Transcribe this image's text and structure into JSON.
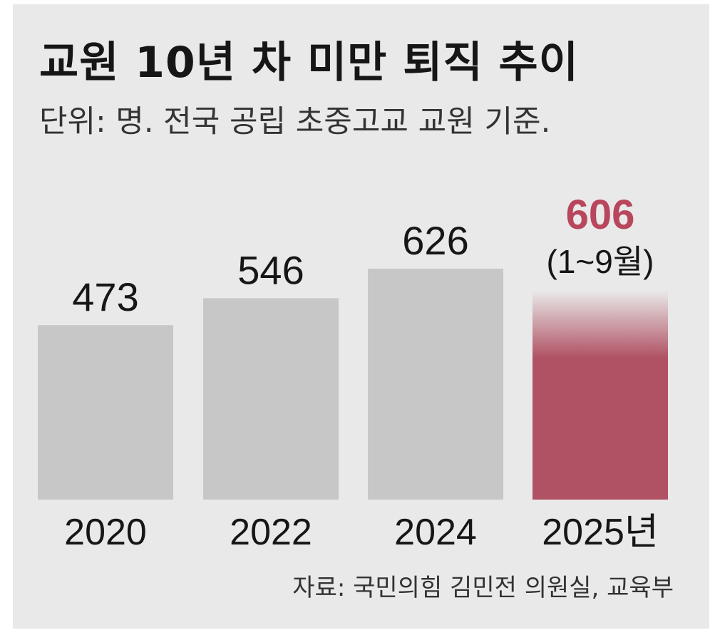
{
  "title": "교원 10년 차 미만 퇴직 추이",
  "subtitle": "단위: 명. 전국 공립 초중고교 교원 기준.",
  "source": "자료: 국민의힘 김민전 의원실, 교육부",
  "colors": {
    "bar_default": "#c7c7c7",
    "bar_highlight": "#b05264",
    "value_highlight": "#b8465c",
    "text": "#161616",
    "background": "#e9e9e9"
  },
  "chart_data": {
    "type": "bar",
    "title": "교원 10년 차 미만 퇴직 추이",
    "subtitle": "단위: 명. 전국 공립 초중고교 교원 기준.",
    "categories": [
      "2020",
      "2022",
      "2024",
      "2025년"
    ],
    "values": [
      473,
      546,
      626,
      606
    ],
    "value_labels": [
      "473",
      "546",
      "626",
      "606"
    ],
    "annotations": [
      {
        "category": "2025년",
        "text": "(1~9월)"
      }
    ],
    "highlight_index": 3,
    "xlabel": "",
    "ylabel": "",
    "ylim": [
      0,
      700
    ],
    "grid": false,
    "legend": "none"
  }
}
